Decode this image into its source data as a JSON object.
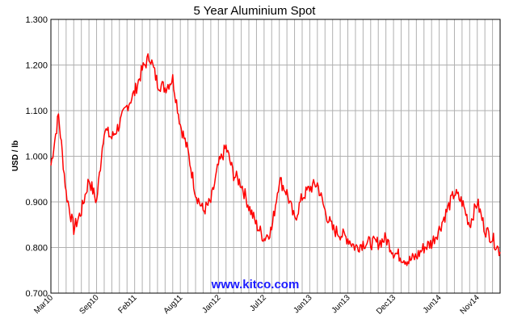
{
  "chart_data": {
    "type": "line",
    "title": "5 Year Aluminium Spot",
    "xlabel": "",
    "ylabel": "USD / lb",
    "ylim": [
      0.7,
      1.3
    ],
    "y_ticks": [
      "0.700",
      "0.800",
      "0.900",
      "1.000",
      "1.100",
      "1.200",
      "1.300"
    ],
    "x_ticks": [
      "Mar10",
      "Sep10",
      "Feb11",
      "Aug11",
      "Jan12",
      "Jul12",
      "Jan13",
      "Jun13",
      "Dec13",
      "Jun14",
      "Nov14"
    ],
    "grid": true,
    "legend": "none",
    "colors": {
      "series": "#ff0000",
      "grid": "#b0b0b0",
      "axis": "#000000",
      "watermark": "#1a1aff"
    },
    "series": [
      {
        "x": [
          "Mar10",
          "Apr10",
          "May10",
          "Jun10",
          "Jul10",
          "Aug10",
          "Sep10",
          "Oct10",
          "Nov10",
          "Dec10",
          "Jan11",
          "Feb11",
          "Mar11",
          "Apr11",
          "May11",
          "Jun11",
          "Jul11",
          "Aug11",
          "Sep11",
          "Oct11",
          "Nov11",
          "Dec11",
          "Jan12",
          "Feb12",
          "Mar12",
          "Apr12",
          "May12",
          "Jun12",
          "Jul12",
          "Aug12",
          "Sep12",
          "Oct12",
          "Nov12",
          "Dec12",
          "Jan13",
          "Feb13",
          "Mar13",
          "Apr13",
          "May13",
          "Jun13",
          "Jul13",
          "Aug13",
          "Sep13",
          "Oct13",
          "Nov13",
          "Dec13",
          "Jan14",
          "Feb14",
          "Mar14",
          "Apr14",
          "May14",
          "Jun14",
          "Jul14",
          "Aug14",
          "Sep14",
          "Oct14",
          "Nov14",
          "Dec14",
          "Jan15",
          "Feb15"
        ],
        "values": [
          0.98,
          1.09,
          0.92,
          0.84,
          0.88,
          0.95,
          0.9,
          1.06,
          1.04,
          1.07,
          1.11,
          1.14,
          1.19,
          1.22,
          1.16,
          1.15,
          1.17,
          1.07,
          1.01,
          0.92,
          0.88,
          0.9,
          0.98,
          1.02,
          0.96,
          0.94,
          0.89,
          0.85,
          0.82,
          0.84,
          0.95,
          0.92,
          0.86,
          0.91,
          0.93,
          0.94,
          0.88,
          0.84,
          0.83,
          0.82,
          0.8,
          0.81,
          0.81,
          0.81,
          0.82,
          0.79,
          0.78,
          0.77,
          0.78,
          0.8,
          0.81,
          0.84,
          0.88,
          0.92,
          0.9,
          0.85,
          0.9,
          0.84,
          0.82,
          0.79
        ]
      }
    ],
    "watermark": "www.kitco.com"
  }
}
